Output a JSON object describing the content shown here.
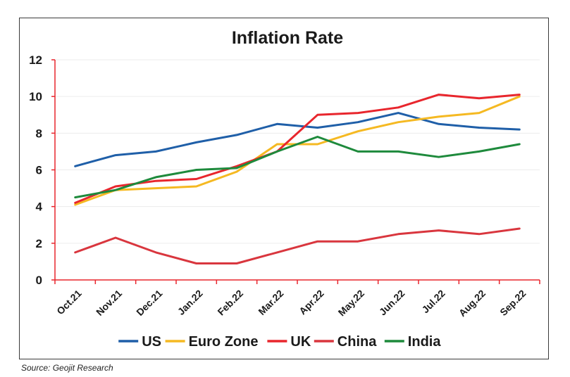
{
  "chart_data": {
    "type": "line",
    "title": "Inflation Rate",
    "xlabel": "",
    "ylabel": "",
    "categories": [
      "Oct.21",
      "Nov.21",
      "Dec.21",
      "Jan.22",
      "Feb.22",
      "Mar.22",
      "Apr.22",
      "May.22",
      "Jun.22",
      "Jul.22",
      "Aug.22",
      "Sep.22"
    ],
    "ylim": [
      0,
      12
    ],
    "yticks": [
      0,
      2,
      4,
      6,
      8,
      10,
      12
    ],
    "grid": "horizontal",
    "legend_position": "bottom",
    "series": [
      {
        "name": "US",
        "color": "#1f5fa8",
        "values": [
          6.2,
          6.8,
          7.0,
          7.5,
          7.9,
          8.5,
          8.3,
          8.6,
          9.1,
          8.5,
          8.3,
          8.2
        ]
      },
      {
        "name": "Euro Zone",
        "color": "#f5b922",
        "values": [
          4.1,
          4.9,
          5.0,
          5.1,
          5.9,
          7.4,
          7.4,
          8.1,
          8.6,
          8.9,
          9.1,
          10.0
        ]
      },
      {
        "name": "UK",
        "color": "#e8262d",
        "values": [
          4.2,
          5.1,
          5.4,
          5.5,
          6.2,
          7.0,
          9.0,
          9.1,
          9.4,
          10.1,
          9.9,
          10.1
        ]
      },
      {
        "name": "China",
        "color": "#d9363e",
        "values": [
          1.5,
          2.3,
          1.5,
          0.9,
          0.9,
          1.5,
          2.1,
          2.1,
          2.5,
          2.7,
          2.5,
          2.8
        ]
      },
      {
        "name": "India",
        "color": "#1e8a3c",
        "values": [
          4.5,
          4.9,
          5.6,
          6.0,
          6.1,
          7.0,
          7.8,
          7.0,
          7.0,
          6.7,
          7.0,
          7.4
        ]
      }
    ]
  },
  "axis_color": "#e8262d",
  "source_text": "Source: Geojit Research"
}
